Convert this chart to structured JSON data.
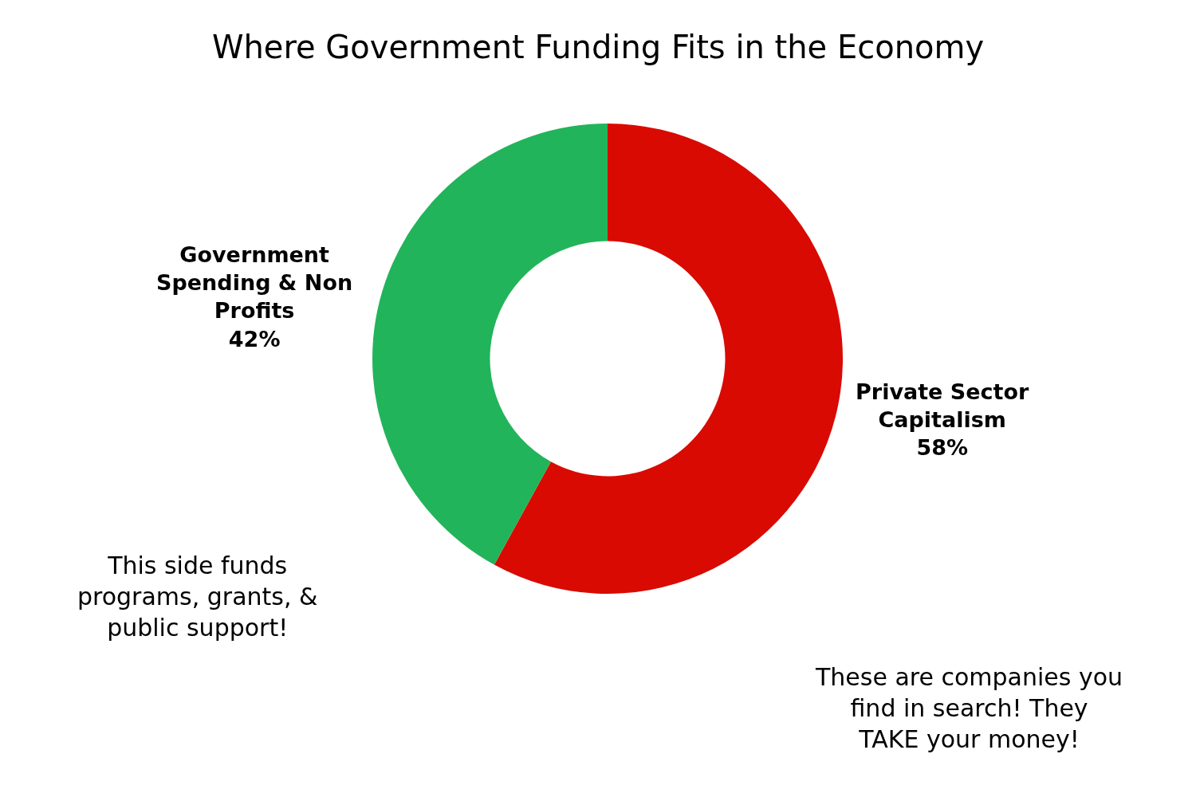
{
  "chart_data": {
    "type": "donut",
    "title": "Where Government Funding Fits in the Economy",
    "categories": [
      "Private Sector Capitalism",
      "Government Spending & Non Profits"
    ],
    "values": [
      58,
      42
    ],
    "colors": [
      "#d90a02",
      "#22b45a"
    ],
    "value_labels": [
      "58%",
      "42%"
    ],
    "legend": false,
    "annotations": [
      "This side funds programs, grants, & public support!",
      "These are companies you find in search! They TAKE your money!"
    ]
  }
}
